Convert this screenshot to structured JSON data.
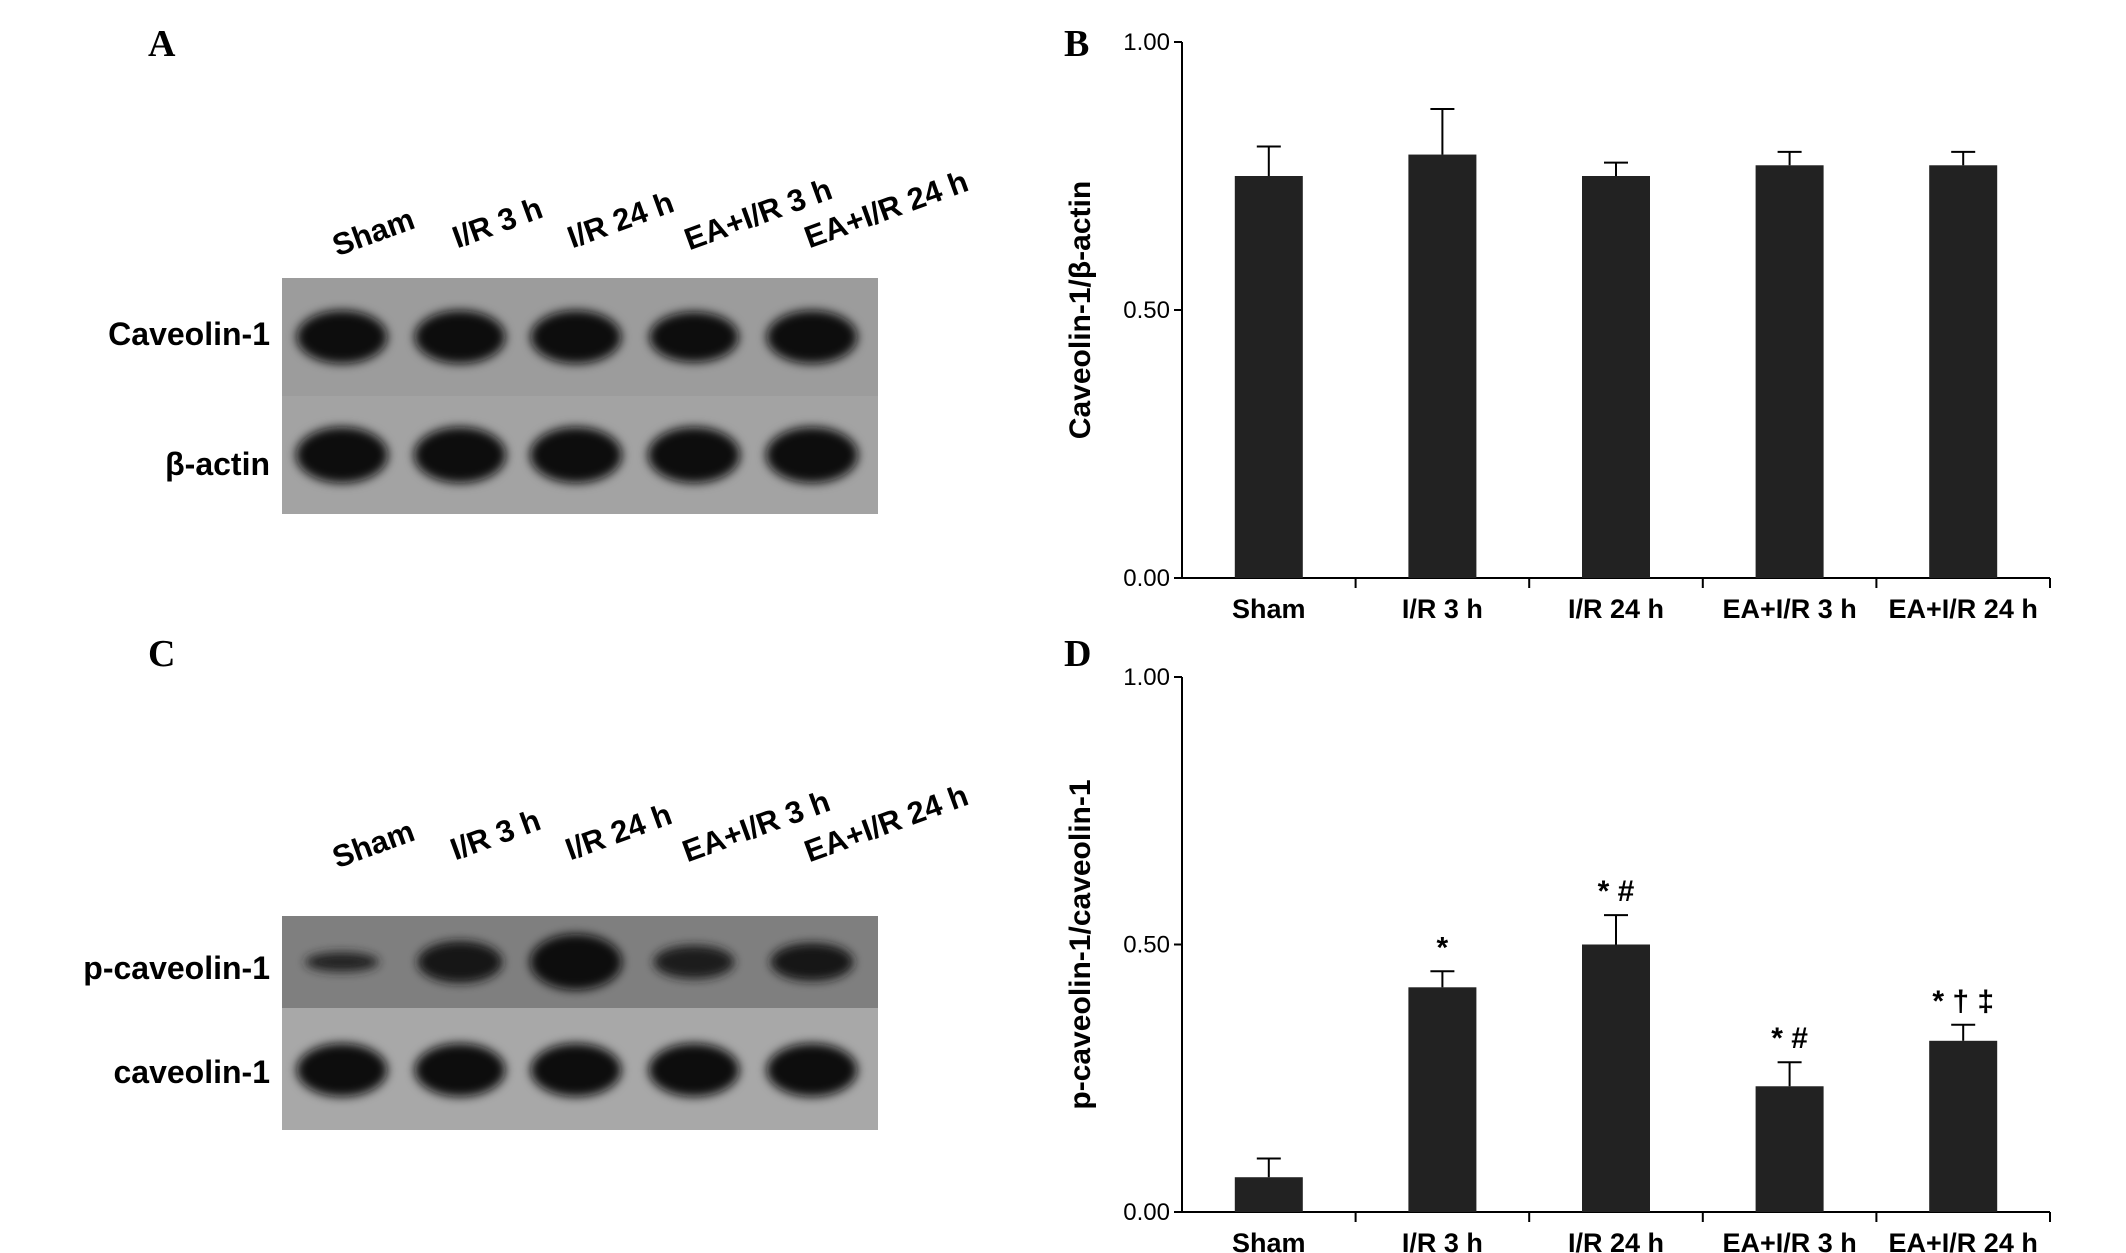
{
  "panels": {
    "a": {
      "letter": "A",
      "lanes": [
        "Sham",
        "I/R 3 h",
        "I/R 24 h",
        "EA+I/R 3 h",
        "EA+I/R 24 h"
      ],
      "rows": [
        {
          "label": "Caveolin-1",
          "intensity": [
            0.95,
            0.95,
            0.95,
            0.9,
            0.95
          ]
        },
        {
          "label": "β-actin",
          "intensity": [
            1,
            1,
            1,
            1,
            1
          ]
        }
      ]
    },
    "c": {
      "letter": "C",
      "lanes": [
        "Sham",
        "I/R 3 h",
        "I/R 24 h",
        "EA+I/R 3 h",
        "EA+I/R 24 h"
      ],
      "rows": [
        {
          "label": "p-caveolin-1",
          "intensity": [
            0.35,
            0.75,
            1.0,
            0.6,
            0.68
          ]
        },
        {
          "label": "caveolin-1",
          "intensity": [
            0.95,
            0.95,
            0.95,
            0.95,
            0.95
          ]
        }
      ]
    },
    "b_letter": "B",
    "d_letter": "D"
  },
  "colors": {
    "bar": "#222222",
    "axis": "#000000",
    "blot_bg": "#9a9a9a",
    "band": "#0d0d0d"
  },
  "chart_data": [
    {
      "type": "bar",
      "panel": "B",
      "categories": [
        "Sham",
        "I/R 3 h",
        "I/R 24 h",
        "EA+I/R 3 h",
        "EA+I/R 24 h"
      ],
      "values": [
        0.75,
        0.79,
        0.75,
        0.77,
        0.77
      ],
      "errors": [
        0.055,
        0.085,
        0.025,
        0.025,
        0.025
      ],
      "annotations": [
        "",
        "",
        "",
        "",
        ""
      ],
      "ylabel": "Caveolin-1/β-actin",
      "ylim": [
        0,
        1
      ],
      "yticks": [
        "0.00",
        "0.50",
        "1.00"
      ],
      "grid": false
    },
    {
      "type": "bar",
      "panel": "D",
      "categories": [
        "Sham",
        "I/R 3 h",
        "I/R 24 h",
        "EA+I/R 3 h",
        "EA+I/R 24 h"
      ],
      "values": [
        0.065,
        0.42,
        0.5,
        0.235,
        0.32
      ],
      "errors": [
        0.035,
        0.03,
        0.055,
        0.045,
        0.03
      ],
      "annotations": [
        "",
        "*",
        "* #",
        "* #",
        "* † ‡"
      ],
      "ylabel": "p-caveolin-1/caveolin-1",
      "ylim": [
        0,
        1
      ],
      "yticks": [
        "0.00",
        "0.50",
        "1.00"
      ],
      "grid": false
    }
  ]
}
